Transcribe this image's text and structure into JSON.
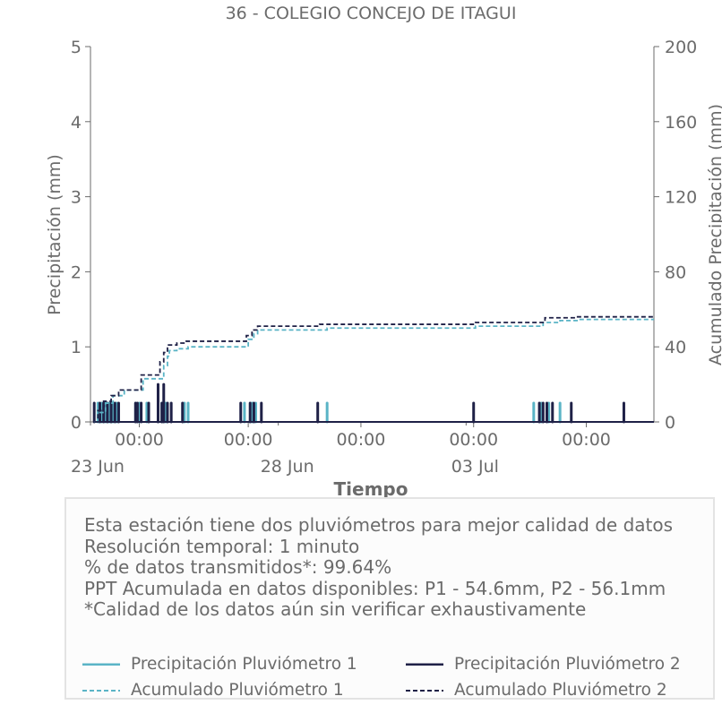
{
  "chart_data": {
    "type": "bar+line",
    "title": "36 - COLEGIO CONCEJO DE ITAGUI",
    "xlabel": "Tiempo",
    "ylabel_left": "Precipitación (mm)",
    "ylabel_right": "Acumulado Precipitación (mm)",
    "ylim_left": [
      0,
      5
    ],
    "ylim_right": [
      0,
      200
    ],
    "yticks_left": [
      "0",
      "1",
      "2",
      "3",
      "4",
      "5"
    ],
    "yticks_right": [
      "0",
      "40",
      "80",
      "120",
      "160",
      "200"
    ],
    "x_tick_labels": [
      "00:00",
      "00:00",
      "00:00",
      "00:00",
      "00:00"
    ],
    "x_date_labels": [
      "23 Jun",
      "28 Jun",
      "03 Jul"
    ],
    "x_range_days": [
      0,
      15
    ],
    "x_ticks_days": [
      1.3,
      4.2,
      7.2,
      10.2,
      13.2
    ],
    "x_date_days": [
      0.0,
      5.0,
      10.0
    ],
    "grid": false,
    "colors": {
      "p1": "#5ab4c6",
      "p2": "#1f2147"
    },
    "series": [
      {
        "name": "Precipitación Pluviómetro 1",
        "kind": "bars",
        "axis": "left",
        "points": [
          [
            0.2,
            0.25
          ],
          [
            0.3,
            0.25
          ],
          [
            0.4,
            0.25
          ],
          [
            0.5,
            0.25
          ],
          [
            0.55,
            0.25
          ],
          [
            0.6,
            0.25
          ],
          [
            0.7,
            0.25
          ],
          [
            1.2,
            0.25
          ],
          [
            1.3,
            0.25
          ],
          [
            1.5,
            0.25
          ],
          [
            1.8,
            0.25
          ],
          [
            1.9,
            0.25
          ],
          [
            2.0,
            0.25
          ],
          [
            2.5,
            0.25
          ],
          [
            2.6,
            0.25
          ],
          [
            4.1,
            0.25
          ],
          [
            4.3,
            0.25
          ],
          [
            4.4,
            0.25
          ],
          [
            6.3,
            0.25
          ],
          [
            11.8,
            0.25
          ],
          [
            12.0,
            0.25
          ],
          [
            12.2,
            0.25
          ],
          [
            12.5,
            0.25
          ]
        ]
      },
      {
        "name": "Precipitación Pluviómetro 2",
        "kind": "bars",
        "axis": "left",
        "points": [
          [
            0.1,
            0.25
          ],
          [
            0.25,
            0.25
          ],
          [
            0.35,
            0.25
          ],
          [
            0.45,
            0.25
          ],
          [
            0.55,
            0.25
          ],
          [
            0.65,
            0.25
          ],
          [
            0.75,
            0.25
          ],
          [
            1.2,
            0.25
          ],
          [
            1.25,
            0.25
          ],
          [
            1.35,
            0.25
          ],
          [
            1.55,
            0.25
          ],
          [
            1.8,
            0.5
          ],
          [
            1.9,
            0.25
          ],
          [
            1.95,
            0.5
          ],
          [
            2.05,
            0.25
          ],
          [
            2.15,
            0.25
          ],
          [
            2.45,
            0.25
          ],
          [
            4.0,
            0.25
          ],
          [
            4.25,
            0.25
          ],
          [
            4.35,
            0.25
          ],
          [
            4.55,
            0.25
          ],
          [
            6.05,
            0.25
          ],
          [
            10.2,
            0.25
          ],
          [
            11.95,
            0.25
          ],
          [
            12.05,
            0.25
          ],
          [
            12.15,
            0.25
          ],
          [
            12.3,
            0.25
          ],
          [
            12.8,
            0.25
          ],
          [
            14.2,
            0.25
          ]
        ]
      },
      {
        "name": "Acumulado Pluviómetro 1",
        "kind": "step",
        "axis": "right",
        "points": [
          [
            0.1,
            0
          ],
          [
            0.2,
            5
          ],
          [
            0.4,
            10
          ],
          [
            0.6,
            14
          ],
          [
            0.9,
            17
          ],
          [
            1.3,
            17
          ],
          [
            1.4,
            23
          ],
          [
            1.8,
            23
          ],
          [
            1.95,
            30
          ],
          [
            2.05,
            35
          ],
          [
            2.1,
            38
          ],
          [
            2.3,
            39
          ],
          [
            2.5,
            39
          ],
          [
            2.6,
            40
          ],
          [
            4.1,
            40
          ],
          [
            4.2,
            44
          ],
          [
            4.35,
            47
          ],
          [
            4.45,
            49
          ],
          [
            6.05,
            49
          ],
          [
            6.3,
            50
          ],
          [
            10.2,
            50
          ],
          [
            10.25,
            51
          ],
          [
            11.9,
            51
          ],
          [
            12.05,
            53
          ],
          [
            12.5,
            54
          ],
          [
            13.0,
            54.6
          ],
          [
            15.0,
            54.6
          ]
        ]
      },
      {
        "name": "Acumulado Pluviómetro 2",
        "kind": "step",
        "axis": "right",
        "points": [
          [
            0.1,
            0
          ],
          [
            0.2,
            6
          ],
          [
            0.35,
            11
          ],
          [
            0.55,
            14
          ],
          [
            0.75,
            17
          ],
          [
            1.25,
            17
          ],
          [
            1.35,
            25
          ],
          [
            1.75,
            25
          ],
          [
            1.85,
            32
          ],
          [
            1.95,
            37
          ],
          [
            2.05,
            41
          ],
          [
            2.3,
            42
          ],
          [
            2.45,
            42
          ],
          [
            2.55,
            43
          ],
          [
            4.0,
            43
          ],
          [
            4.15,
            46
          ],
          [
            4.3,
            49
          ],
          [
            4.45,
            51
          ],
          [
            6.0,
            51
          ],
          [
            6.1,
            52
          ],
          [
            10.15,
            52
          ],
          [
            10.25,
            53
          ],
          [
            11.95,
            53
          ],
          [
            12.1,
            55.5
          ],
          [
            12.9,
            56
          ],
          [
            15.0,
            56.1
          ]
        ]
      }
    ]
  },
  "info": {
    "lines": [
      "Esta estación tiene dos pluviómetros para mejor calidad de datos",
      "Resolución temporal: 1 minuto",
      "% de datos transmitidos*: 99.64%",
      "PPT Acumulada en datos disponibles: P1 - 54.6mm, P2 - 56.1mm",
      "*Calidad de los datos aún sin verificar exhaustivamente"
    ]
  },
  "legend": [
    {
      "label": "Precipitación Pluviómetro 1",
      "color": "#5ab4c6",
      "style": "solid"
    },
    {
      "label": "Precipitación Pluviómetro 2",
      "color": "#1f2147",
      "style": "solid"
    },
    {
      "label": "Acumulado Pluviómetro 1",
      "color": "#5ab4c6",
      "style": "dashed"
    },
    {
      "label": "Acumulado Pluviómetro 2",
      "color": "#1f2147",
      "style": "dashed"
    }
  ]
}
